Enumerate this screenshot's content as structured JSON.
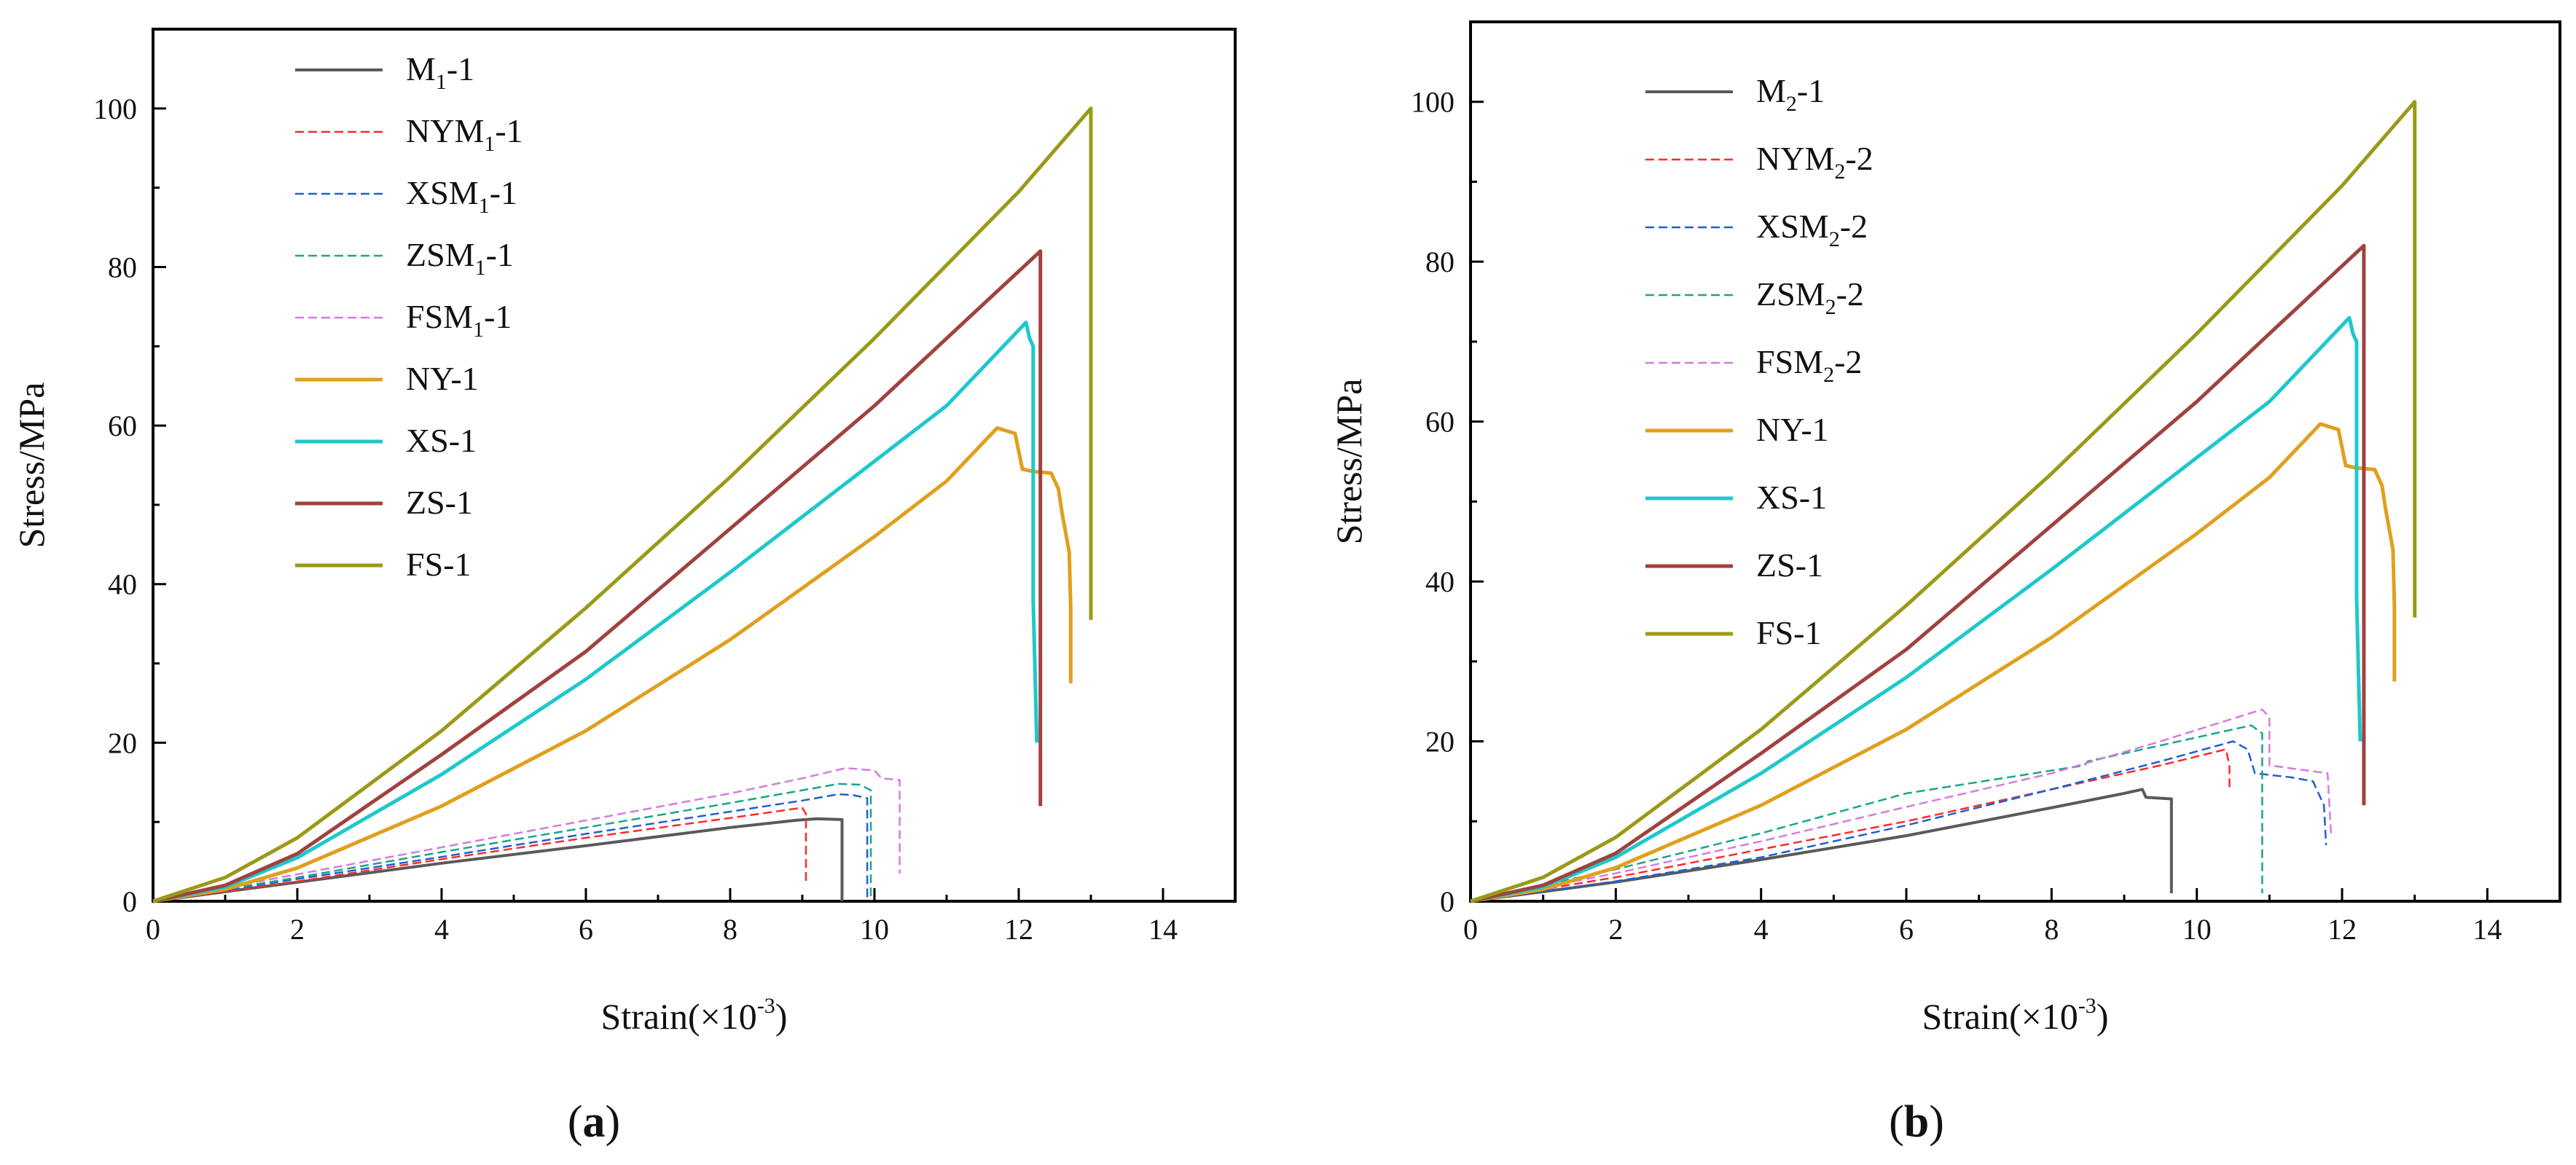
{
  "figure": {
    "panels": [
      {
        "caption_letter": "a"
      },
      {
        "caption_letter": "b"
      }
    ]
  },
  "chart_data": [
    {
      "type": "line",
      "title": "",
      "xlabel": "Strain(×10⁻³)",
      "xlabel_main": "Strain(×10",
      "xlabel_exp": "-3",
      "xlabel_close": ")",
      "ylabel": "Stress/MPa",
      "xlim": [
        0,
        15
      ],
      "ylim": [
        0,
        110
      ],
      "xticks": [
        "0",
        "2",
        "4",
        "6",
        "8",
        "10",
        "12",
        "14"
      ],
      "yticks": [
        "0",
        "20",
        "40",
        "60",
        "80",
        "100"
      ],
      "caption": "(a)",
      "legend_position": "upper-left",
      "series": [
        {
          "name": "M1-1",
          "label_parts": [
            "M",
            "1",
            "-1"
          ],
          "color": "#5a5a5a",
          "dash": "solid",
          "width": 4,
          "points": [
            [
              0,
              0
            ],
            [
              1,
              1.2
            ],
            [
              2,
              2.4
            ],
            [
              4,
              4.8
            ],
            [
              6,
              7.0
            ],
            [
              8,
              9.3
            ],
            [
              8.9,
              10.2
            ],
            [
              9.2,
              10.4
            ],
            [
              9.55,
              10.3
            ],
            [
              9.55,
              0
            ]
          ]
        },
        {
          "name": "NYM1-1",
          "label_parts": [
            "NYM",
            "1",
            "-1"
          ],
          "color": "#ff2a2a",
          "dash": "dashed",
          "width": 2.5,
          "points": [
            [
              0,
              0
            ],
            [
              2,
              2.5
            ],
            [
              4,
              5.3
            ],
            [
              6,
              8.0
            ],
            [
              8,
              10.5
            ],
            [
              9.0,
              11.8
            ],
            [
              9.05,
              11.0
            ],
            [
              9.05,
              2.5
            ]
          ]
        },
        {
          "name": "XSM1-1",
          "label_parts": [
            "XSM",
            "1",
            "-1"
          ],
          "color": "#1f5fd0",
          "dash": "dashed",
          "width": 2.5,
          "points": [
            [
              0,
              0
            ],
            [
              2,
              2.8
            ],
            [
              4,
              5.6
            ],
            [
              6,
              8.5
            ],
            [
              8,
              11.3
            ],
            [
              9.0,
              12.7
            ],
            [
              9.5,
              13.5
            ],
            [
              9.7,
              13.4
            ],
            [
              9.9,
              13.0
            ],
            [
              9.9,
              0
            ]
          ]
        },
        {
          "name": "ZSM1-1",
          "label_parts": [
            "ZSM",
            "1",
            "-1"
          ],
          "color": "#19a68a",
          "dash": "dashed",
          "width": 2.5,
          "points": [
            [
              0,
              0
            ],
            [
              2,
              3.0
            ],
            [
              4,
              6.2
            ],
            [
              6,
              9.3
            ],
            [
              8,
              12.4
            ],
            [
              9.0,
              14.0
            ],
            [
              9.5,
              14.8
            ],
            [
              9.8,
              14.7
            ],
            [
              9.95,
              14.0
            ],
            [
              9.95,
              0
            ]
          ]
        },
        {
          "name": "FSM1-1",
          "label_parts": [
            "FSM",
            "1",
            "-1"
          ],
          "color": "#d57be0",
          "dash": "dashed",
          "width": 2.5,
          "points": [
            [
              0,
              0
            ],
            [
              2,
              3.4
            ],
            [
              4,
              6.8
            ],
            [
              6,
              10.2
            ],
            [
              8,
              13.6
            ],
            [
              9.0,
              15.5
            ],
            [
              9.6,
              16.8
            ],
            [
              10.0,
              16.5
            ],
            [
              10.1,
              15.5
            ],
            [
              10.35,
              15.3
            ],
            [
              10.35,
              3.5
            ]
          ]
        },
        {
          "name": "NY-1",
          "label_parts": [
            "NY-1",
            "",
            ""
          ],
          "color": "#e0a01e",
          "dash": "solid",
          "width": 5,
          "points": [
            [
              0,
              0
            ],
            [
              1,
              1.5
            ],
            [
              2,
              4.2
            ],
            [
              4,
              12.0
            ],
            [
              6,
              21.5
            ],
            [
              8,
              33.0
            ],
            [
              10,
              46.0
            ],
            [
              11,
              53.0
            ],
            [
              11.7,
              59.7
            ],
            [
              11.95,
              59.0
            ],
            [
              12.05,
              54.5
            ],
            [
              12.2,
              54.2
            ],
            [
              12.45,
              54.0
            ],
            [
              12.55,
              52.0
            ],
            [
              12.6,
              49.0
            ],
            [
              12.7,
              44.0
            ],
            [
              12.72,
              37.0
            ],
            [
              12.72,
              27.5
            ]
          ]
        },
        {
          "name": "XS-1",
          "label_parts": [
            "XS-1",
            "",
            ""
          ],
          "color": "#1ec8cc",
          "dash": "solid",
          "width": 5,
          "points": [
            [
              0,
              0
            ],
            [
              1,
              1.8
            ],
            [
              2,
              5.5
            ],
            [
              4,
              16.0
            ],
            [
              6,
              28.0
            ],
            [
              8,
              41.5
            ],
            [
              10,
              55.5
            ],
            [
              11,
              62.5
            ],
            [
              12.1,
              73.0
            ],
            [
              12.15,
              71.0
            ],
            [
              12.2,
              70.0
            ],
            [
              12.2,
              38.0
            ],
            [
              12.25,
              20.0
            ]
          ]
        },
        {
          "name": "ZS-1",
          "label_parts": [
            "ZS-1",
            "",
            ""
          ],
          "color": "#a0423f",
          "dash": "solid",
          "width": 5,
          "points": [
            [
              0,
              0
            ],
            [
              1,
              2.0
            ],
            [
              2,
              6.0
            ],
            [
              4,
              18.5
            ],
            [
              6,
              31.5
            ],
            [
              8,
              47.0
            ],
            [
              10,
              62.5
            ],
            [
              11,
              71.0
            ],
            [
              12.3,
              82.0
            ],
            [
              12.3,
              12.0
            ]
          ]
        },
        {
          "name": "FS-1",
          "label_parts": [
            "FS-1",
            "",
            ""
          ],
          "color": "#9a9a18",
          "dash": "solid",
          "width": 5,
          "points": [
            [
              0,
              0
            ],
            [
              1,
              3.0
            ],
            [
              2,
              8.0
            ],
            [
              4,
              21.5
            ],
            [
              6,
              37.0
            ],
            [
              8,
              53.5
            ],
            [
              10,
              71.0
            ],
            [
              12,
              89.5
            ],
            [
              13,
              100.0
            ],
            [
              13,
              35.5
            ]
          ]
        }
      ]
    },
    {
      "type": "line",
      "title": "",
      "xlabel": "Strain(×10⁻³)",
      "xlabel_main": "Strain(×10",
      "xlabel_exp": "-3",
      "xlabel_close": ")",
      "ylabel": "Stress/MPa",
      "xlim": [
        0,
        15
      ],
      "ylim": [
        0,
        110
      ],
      "xticks": [
        "0",
        "2",
        "4",
        "6",
        "8",
        "10",
        "12",
        "14"
      ],
      "yticks": [
        "0",
        "20",
        "40",
        "60",
        "80",
        "100"
      ],
      "caption": "(b)",
      "legend_position": "upper-left",
      "series": [
        {
          "name": "M2-1",
          "label_parts": [
            "M",
            "2",
            "-1"
          ],
          "color": "#5a5a5a",
          "dash": "solid",
          "width": 4,
          "points": [
            [
              0,
              0
            ],
            [
              2,
              2.4
            ],
            [
              4,
              5.2
            ],
            [
              6,
              8.2
            ],
            [
              8,
              11.7
            ],
            [
              9.0,
              13.5
            ],
            [
              9.25,
              14.0
            ],
            [
              9.3,
              13.0
            ],
            [
              9.65,
              12.8
            ],
            [
              9.65,
              1.0
            ]
          ]
        },
        {
          "name": "NYM2-2",
          "label_parts": [
            "NYM",
            "2",
            "-2"
          ],
          "color": "#ff2a2a",
          "dash": "dashed",
          "width": 2.5,
          "points": [
            [
              0,
              0
            ],
            [
              2,
              3.0
            ],
            [
              4,
              6.5
            ],
            [
              6,
              10.0
            ],
            [
              8,
              14.0
            ],
            [
              9.5,
              17.0
            ],
            [
              10.4,
              19.0
            ],
            [
              10.45,
              17.0
            ],
            [
              10.45,
              14.0
            ]
          ]
        },
        {
          "name": "XSM2-2",
          "label_parts": [
            "XSM",
            "2",
            "-2"
          ],
          "color": "#1f5fd0",
          "dash": "dashed",
          "width": 2.5,
          "points": [
            [
              0,
              0
            ],
            [
              2,
              2.5
            ],
            [
              4,
              5.5
            ],
            [
              6,
              9.5
            ],
            [
              8,
              14.0
            ],
            [
              9.5,
              17.5
            ],
            [
              10.5,
              20.0
            ],
            [
              10.7,
              19.0
            ],
            [
              10.8,
              16.0
            ],
            [
              11.3,
              15.5
            ],
            [
              11.6,
              15.0
            ],
            [
              11.75,
              12.0
            ],
            [
              11.78,
              7.0
            ]
          ]
        },
        {
          "name": "ZSM2-2",
          "label_parts": [
            "ZSM",
            "2",
            "-2"
          ],
          "color": "#19a68a",
          "dash": "dashed",
          "width": 2.5,
          "points": [
            [
              0,
              0
            ],
            [
              2,
              4.0
            ],
            [
              4,
              8.5
            ],
            [
              6,
              13.5
            ],
            [
              8.45,
              17.0
            ],
            [
              8.5,
              17.5
            ],
            [
              10,
              20.5
            ],
            [
              10.75,
              22.0
            ],
            [
              10.9,
              21.0
            ],
            [
              10.9,
              1.0
            ]
          ]
        },
        {
          "name": "FSM2-2",
          "label_parts": [
            "FSM",
            "2",
            "-2"
          ],
          "color": "#d57be0",
          "dash": "dashed",
          "width": 2.5,
          "points": [
            [
              0,
              0
            ],
            [
              2,
              3.5
            ],
            [
              4,
              7.5
            ],
            [
              6,
              11.8
            ],
            [
              8,
              16.0
            ],
            [
              9.5,
              20.0
            ],
            [
              10.9,
              24.0
            ],
            [
              11.0,
              23.0
            ],
            [
              11.0,
              17.0
            ],
            [
              11.8,
              16.0
            ],
            [
              11.85,
              8.0
            ]
          ]
        },
        {
          "name": "NY-1",
          "label_parts": [
            "NY-1",
            "",
            ""
          ],
          "color": "#e0a01e",
          "dash": "solid",
          "width": 5,
          "points": [
            [
              0,
              0
            ],
            [
              1,
              1.5
            ],
            [
              2,
              4.2
            ],
            [
              4,
              12.0
            ],
            [
              6,
              21.5
            ],
            [
              8,
              33.0
            ],
            [
              10,
              46.0
            ],
            [
              11,
              53.0
            ],
            [
              11.7,
              59.7
            ],
            [
              11.95,
              59.0
            ],
            [
              12.05,
              54.5
            ],
            [
              12.2,
              54.2
            ],
            [
              12.45,
              54.0
            ],
            [
              12.55,
              52.0
            ],
            [
              12.6,
              49.0
            ],
            [
              12.7,
              44.0
            ],
            [
              12.72,
              37.0
            ],
            [
              12.72,
              27.5
            ]
          ]
        },
        {
          "name": "XS-1",
          "label_parts": [
            "XS-1",
            "",
            ""
          ],
          "color": "#1ec8cc",
          "dash": "solid",
          "width": 5,
          "points": [
            [
              0,
              0
            ],
            [
              1,
              1.8
            ],
            [
              2,
              5.5
            ],
            [
              4,
              16.0
            ],
            [
              6,
              28.0
            ],
            [
              8,
              41.5
            ],
            [
              10,
              55.5
            ],
            [
              11,
              62.5
            ],
            [
              12.1,
              73.0
            ],
            [
              12.15,
              71.0
            ],
            [
              12.2,
              70.0
            ],
            [
              12.2,
              38.0
            ],
            [
              12.25,
              20.0
            ]
          ]
        },
        {
          "name": "ZS-1",
          "label_parts": [
            "ZS-1",
            "",
            ""
          ],
          "color": "#a0423f",
          "dash": "solid",
          "width": 5,
          "points": [
            [
              0,
              0
            ],
            [
              1,
              2.0
            ],
            [
              2,
              6.0
            ],
            [
              4,
              18.5
            ],
            [
              6,
              31.5
            ],
            [
              8,
              47.0
            ],
            [
              10,
              62.5
            ],
            [
              11,
              71.0
            ],
            [
              12.3,
              82.0
            ],
            [
              12.3,
              12.0
            ]
          ]
        },
        {
          "name": "FS-1",
          "label_parts": [
            "FS-1",
            "",
            ""
          ],
          "color": "#9a9a18",
          "dash": "solid",
          "width": 5,
          "points": [
            [
              0,
              0
            ],
            [
              1,
              3.0
            ],
            [
              2,
              8.0
            ],
            [
              4,
              21.5
            ],
            [
              6,
              37.0
            ],
            [
              8,
              53.5
            ],
            [
              10,
              71.0
            ],
            [
              12,
              89.5
            ],
            [
              13,
              100.0
            ],
            [
              13,
              35.5
            ]
          ]
        }
      ]
    }
  ]
}
